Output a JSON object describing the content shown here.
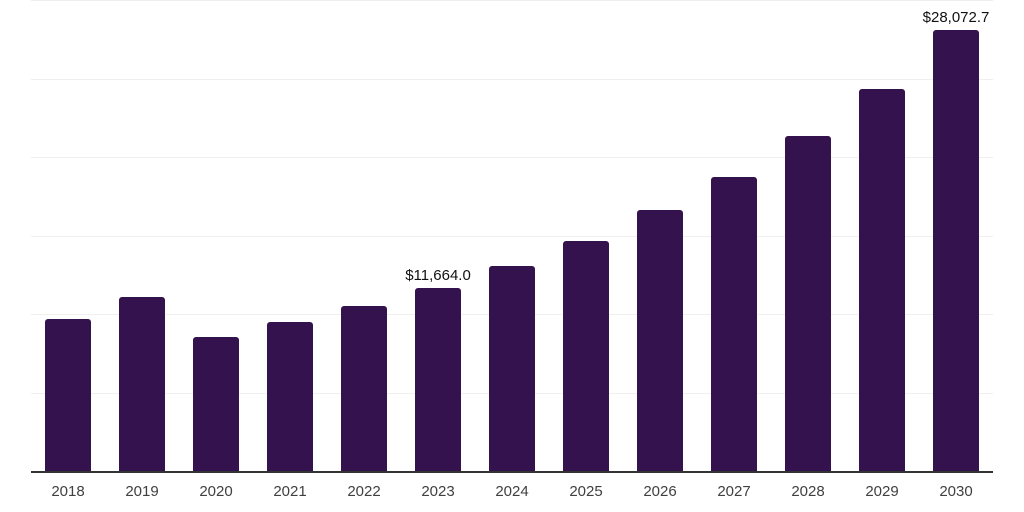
{
  "chart_data": {
    "type": "bar",
    "title": "",
    "xlabel": "",
    "ylabel": "",
    "categories": [
      "2018",
      "2019",
      "2020",
      "2021",
      "2022",
      "2023",
      "2024",
      "2025",
      "2026",
      "2027",
      "2028",
      "2029",
      "2030"
    ],
    "values": [
      9680,
      11080,
      8540,
      9470,
      10510,
      11664.0,
      13060,
      14650,
      16600,
      18710,
      21320,
      24350,
      28072.7
    ],
    "data_labels": [
      {
        "index": 5,
        "text": "$11,664.0"
      },
      {
        "index": 12,
        "text": "$28,072.7"
      }
    ],
    "ylim": [
      0,
      30000
    ],
    "gridline_step": 5000,
    "grid": "horizontal",
    "y_axis_tick_labels_visible": false,
    "legend": "none",
    "colors": {
      "bar": "#34124E",
      "gridline": "#efefef",
      "axis": "#333333",
      "value_label": "#111111",
      "tick_label": "#404040",
      "background": "#ffffff"
    }
  }
}
